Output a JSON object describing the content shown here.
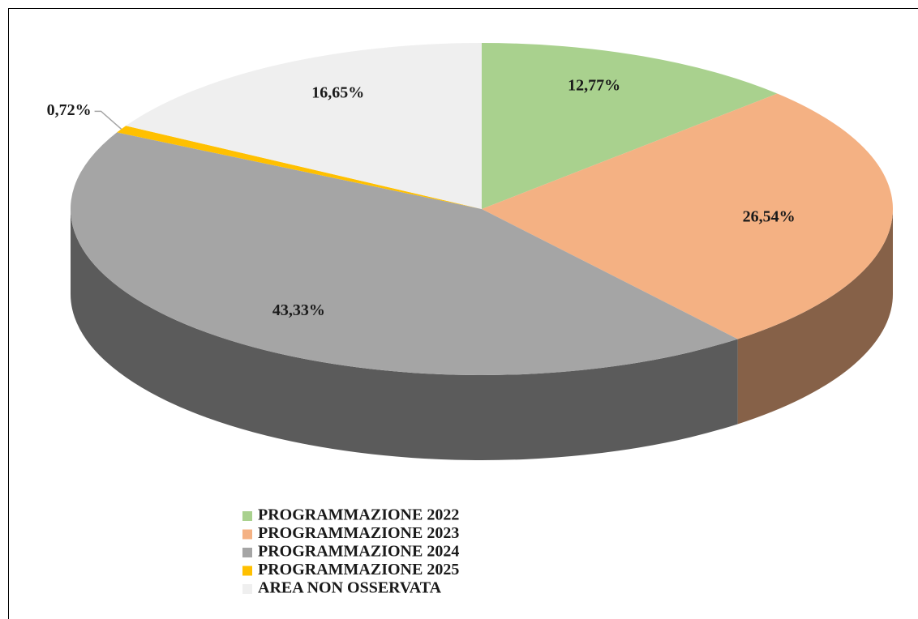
{
  "chart_data": {
    "type": "pie",
    "categories": [
      "PROGRAMMAZIONE 2022",
      "PROGRAMMAZIONE 2023",
      "PROGRAMMAZIONE 2024",
      "PROGRAMMAZIONE 2025",
      "AREA NON OSSERVATA"
    ],
    "values": [
      12.77,
      26.54,
      43.33,
      0.72,
      16.65
    ],
    "value_labels": [
      "12,77%",
      "26,54%",
      "43,33%",
      "0,72%",
      "16,65%"
    ],
    "colors": [
      "#a9d18e",
      "#f4b183",
      "#a5a5a5",
      "#ffc000",
      "#efefef"
    ],
    "legend": "bottom"
  }
}
